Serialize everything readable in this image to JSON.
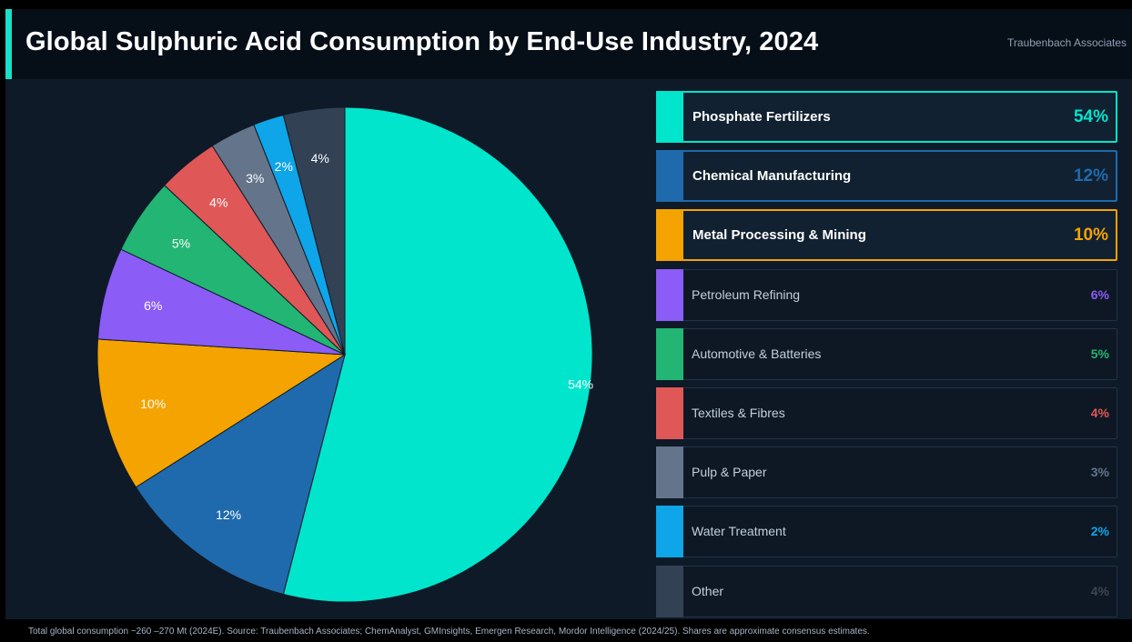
{
  "header": {
    "title": "Global Sulphuric Acid Consumption by End-Use Industry, 2024",
    "brand": "Traubenbach Associates"
  },
  "chart_data": {
    "type": "pie",
    "title": "Global Sulphuric Acid Consumption by End-Use Industry, 2024",
    "slices": [
      {
        "label": "Phosphate Fertilizers",
        "value": 54,
        "display": "54%",
        "color": "#00e5cc",
        "highlight": true
      },
      {
        "label": "Chemical Manufacturing",
        "value": 12,
        "display": "12%",
        "color": "#1f6aad",
        "highlight": true
      },
      {
        "label": "Metal Processing & Mining",
        "value": 10,
        "display": "10%",
        "color": "#f5a300",
        "highlight": true
      },
      {
        "label": "Petroleum Refining",
        "value": 6,
        "display": "6%",
        "color": "#8b5cf6",
        "highlight": false
      },
      {
        "label": "Automotive & Batteries",
        "value": 5,
        "display": "5%",
        "color": "#22b574",
        "highlight": false
      },
      {
        "label": "Textiles & Fibres",
        "value": 4,
        "display": "4%",
        "color": "#e05757",
        "highlight": false
      },
      {
        "label": "Pulp & Paper",
        "value": 3,
        "display": "3%",
        "color": "#64748b",
        "highlight": false
      },
      {
        "label": "Water Treatment",
        "value": 2,
        "display": "2%",
        "color": "#0ea5e9",
        "highlight": false
      },
      {
        "label": "Other",
        "value": 4,
        "display": "4%",
        "color": "#334155",
        "highlight": false
      }
    ],
    "value_colors": {
      "Other": "#3a4656"
    },
    "start_angle": "12 o'clock, clockwise",
    "legend_position": "right"
  },
  "footer": {
    "note": "Total global consumption ~260 –270 Mt (2024E). Source: Traubenbach Associates; ChemAnalyst, GMInsights, Emergen Research, Mordor   Intelligence (2024/25). Shares are approximate consensus estimates."
  }
}
